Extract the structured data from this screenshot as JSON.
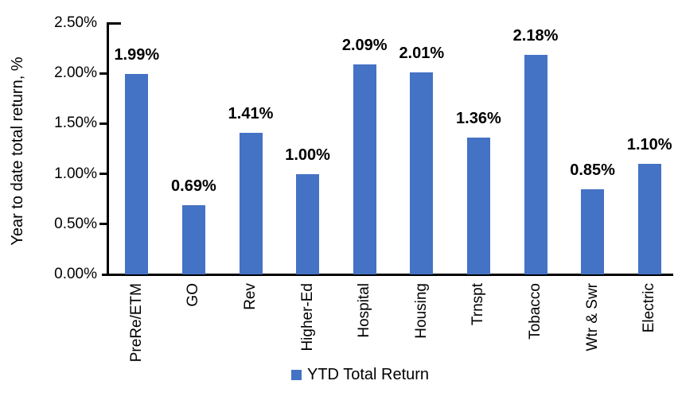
{
  "chart_data": {
    "type": "bar",
    "title": "",
    "xlabel": "",
    "ylabel": "Year to date total return, %",
    "categories": [
      "PreRe/ETM",
      "GO",
      "Rev",
      "Higher-Ed",
      "Hospital",
      "Housing",
      "Trnspt",
      "Tobacco",
      "Wtr & Swr",
      "Electric"
    ],
    "series": [
      {
        "name": "YTD Total Return",
        "values": [
          1.99,
          0.69,
          1.41,
          1.0,
          2.09,
          2.01,
          1.36,
          2.18,
          0.85,
          1.1
        ]
      }
    ],
    "value_labels": [
      "1.99%",
      "0.69%",
      "1.41%",
      "1.00%",
      "2.09%",
      "2.01%",
      "1.36%",
      "2.18%",
      "0.85%",
      "1.10%"
    ],
    "ylim": [
      0,
      2.5
    ],
    "ytick_labels": [
      "0.00%",
      "0.50%",
      "1.00%",
      "1.50%",
      "2.00%",
      "2.50%"
    ],
    "grid": false,
    "legend_position": "bottom",
    "bar_color": "#4472C4",
    "axis_color": "#000000",
    "text_color": "#000000"
  }
}
